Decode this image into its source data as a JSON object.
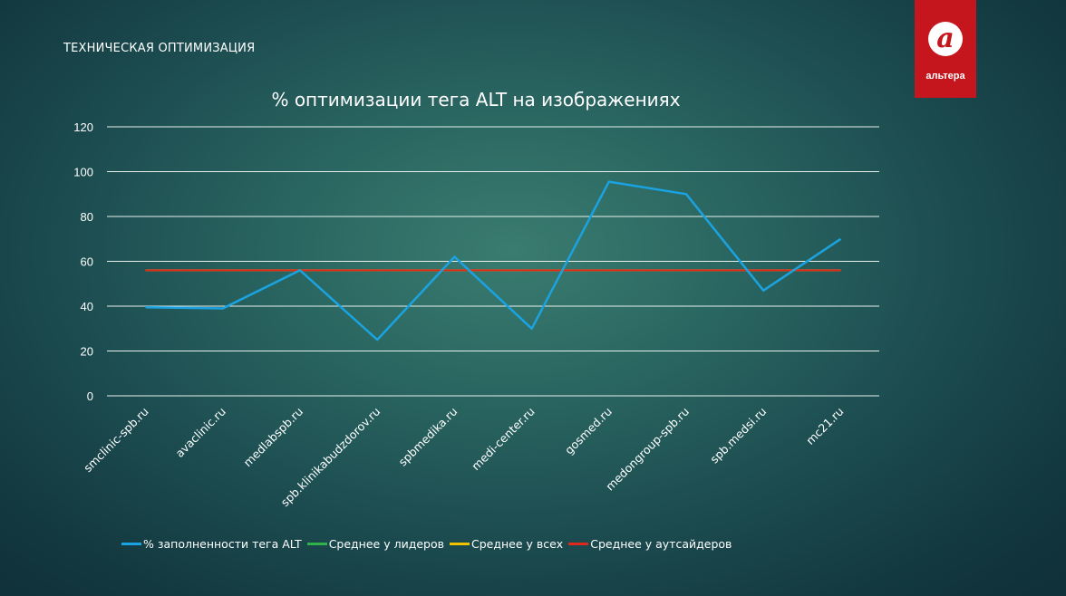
{
  "slide": {
    "title": "ТЕХНИЧЕСКАЯ ОПТИМИЗАЦИЯ"
  },
  "logo": {
    "symbol": "a",
    "text": "альтера",
    "color": "#c5161d"
  },
  "chart_data": {
    "type": "line",
    "title": "% оптимизации тега ALT на изображениях",
    "categories": [
      "smclinic-spb.ru",
      "avaclinic.ru",
      "medlabspb.ru",
      "spb.klinikabudzdorov.ru",
      "spbmedika.ru",
      "medi-center.ru",
      "gosmed.ru",
      "medongroup-spb.ru",
      "spb.medsi.ru",
      "mc21.ru"
    ],
    "ylim": [
      0,
      120
    ],
    "yticks": [
      0,
      20,
      40,
      60,
      80,
      100,
      120
    ],
    "grid": true,
    "legend_position": "bottom",
    "series": [
      {
        "name": "% заполненности тега ALT",
        "color": "#1aa3e0",
        "values": [
          39.5,
          39,
          56,
          25,
          62,
          30,
          95.5,
          90,
          47,
          70
        ]
      },
      {
        "name": "Среднее у лидеров",
        "color": "#2db34a",
        "values": [
          56,
          56,
          56,
          56,
          56,
          56,
          56,
          56,
          56,
          56
        ]
      },
      {
        "name": "Среднее у всех",
        "color": "#f2c200",
        "values": [
          56,
          56,
          56,
          56,
          56,
          56,
          56,
          56,
          56,
          56
        ]
      },
      {
        "name": "Среднее у аутсайдеров",
        "color": "#e0281c",
        "values": [
          56,
          56,
          56,
          56,
          56,
          56,
          56,
          56,
          56,
          56
        ]
      }
    ]
  }
}
